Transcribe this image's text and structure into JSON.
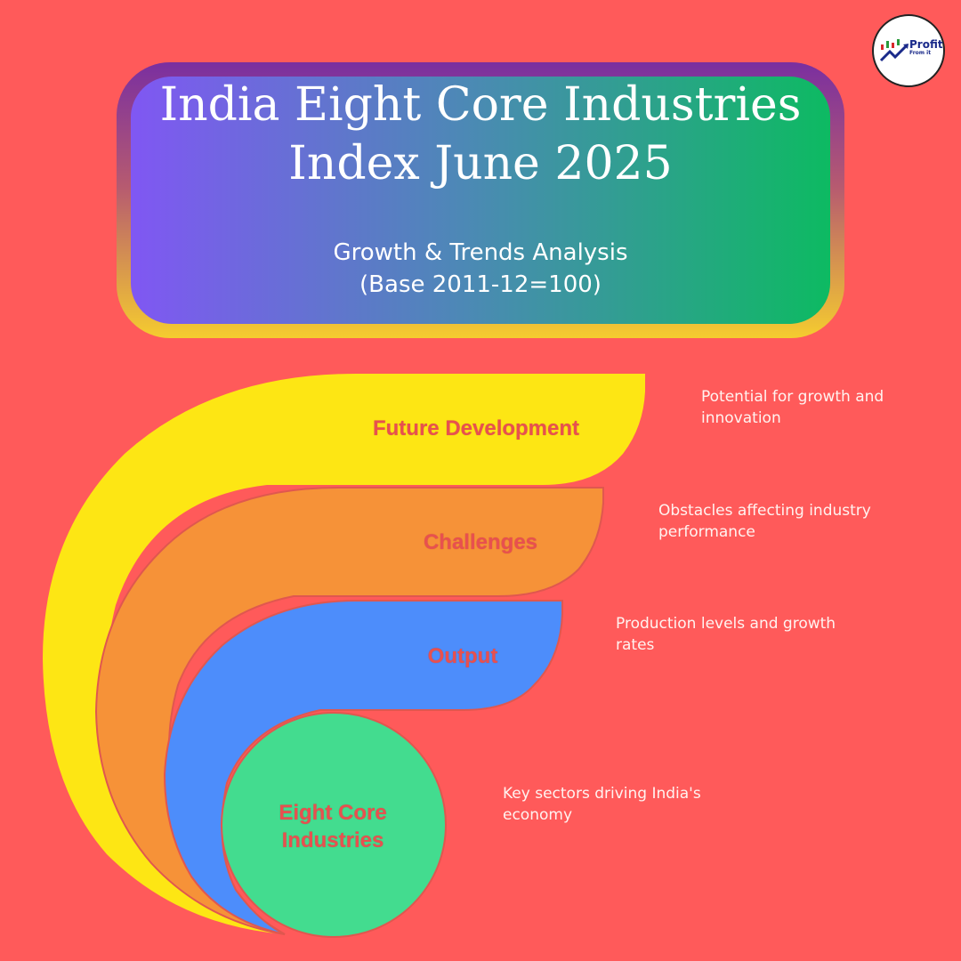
{
  "header": {
    "title_line1": "India Eight Core Industries",
    "title_line2": "Index June 2025",
    "subtitle_line1": "Growth & Trends Analysis",
    "subtitle_line2": "(Base 2011-12=100)"
  },
  "logo": {
    "name": "Profit",
    "tagline": "From it",
    "icon": "growth-chart-arrow-icon"
  },
  "layers": [
    {
      "label": "Future Development",
      "description": "Potential for growth and innovation",
      "color": "#fde614"
    },
    {
      "label": "Challenges",
      "description": "Obstacles affecting industry performance",
      "color": "#f69238"
    },
    {
      "label": "Output",
      "description": "Production levels and growth rates",
      "color": "#4d8dfb"
    },
    {
      "label": "Eight Core Industries",
      "description": "Key sectors driving India's economy",
      "color": "#43dc8f"
    }
  ],
  "colors": {
    "background": "#ff5a5a",
    "label_text": "#e8504f",
    "title_gradient_start": "#8057f3",
    "title_gradient_end": "#0dba62",
    "frame_bottom": "#f5cc2f"
  }
}
